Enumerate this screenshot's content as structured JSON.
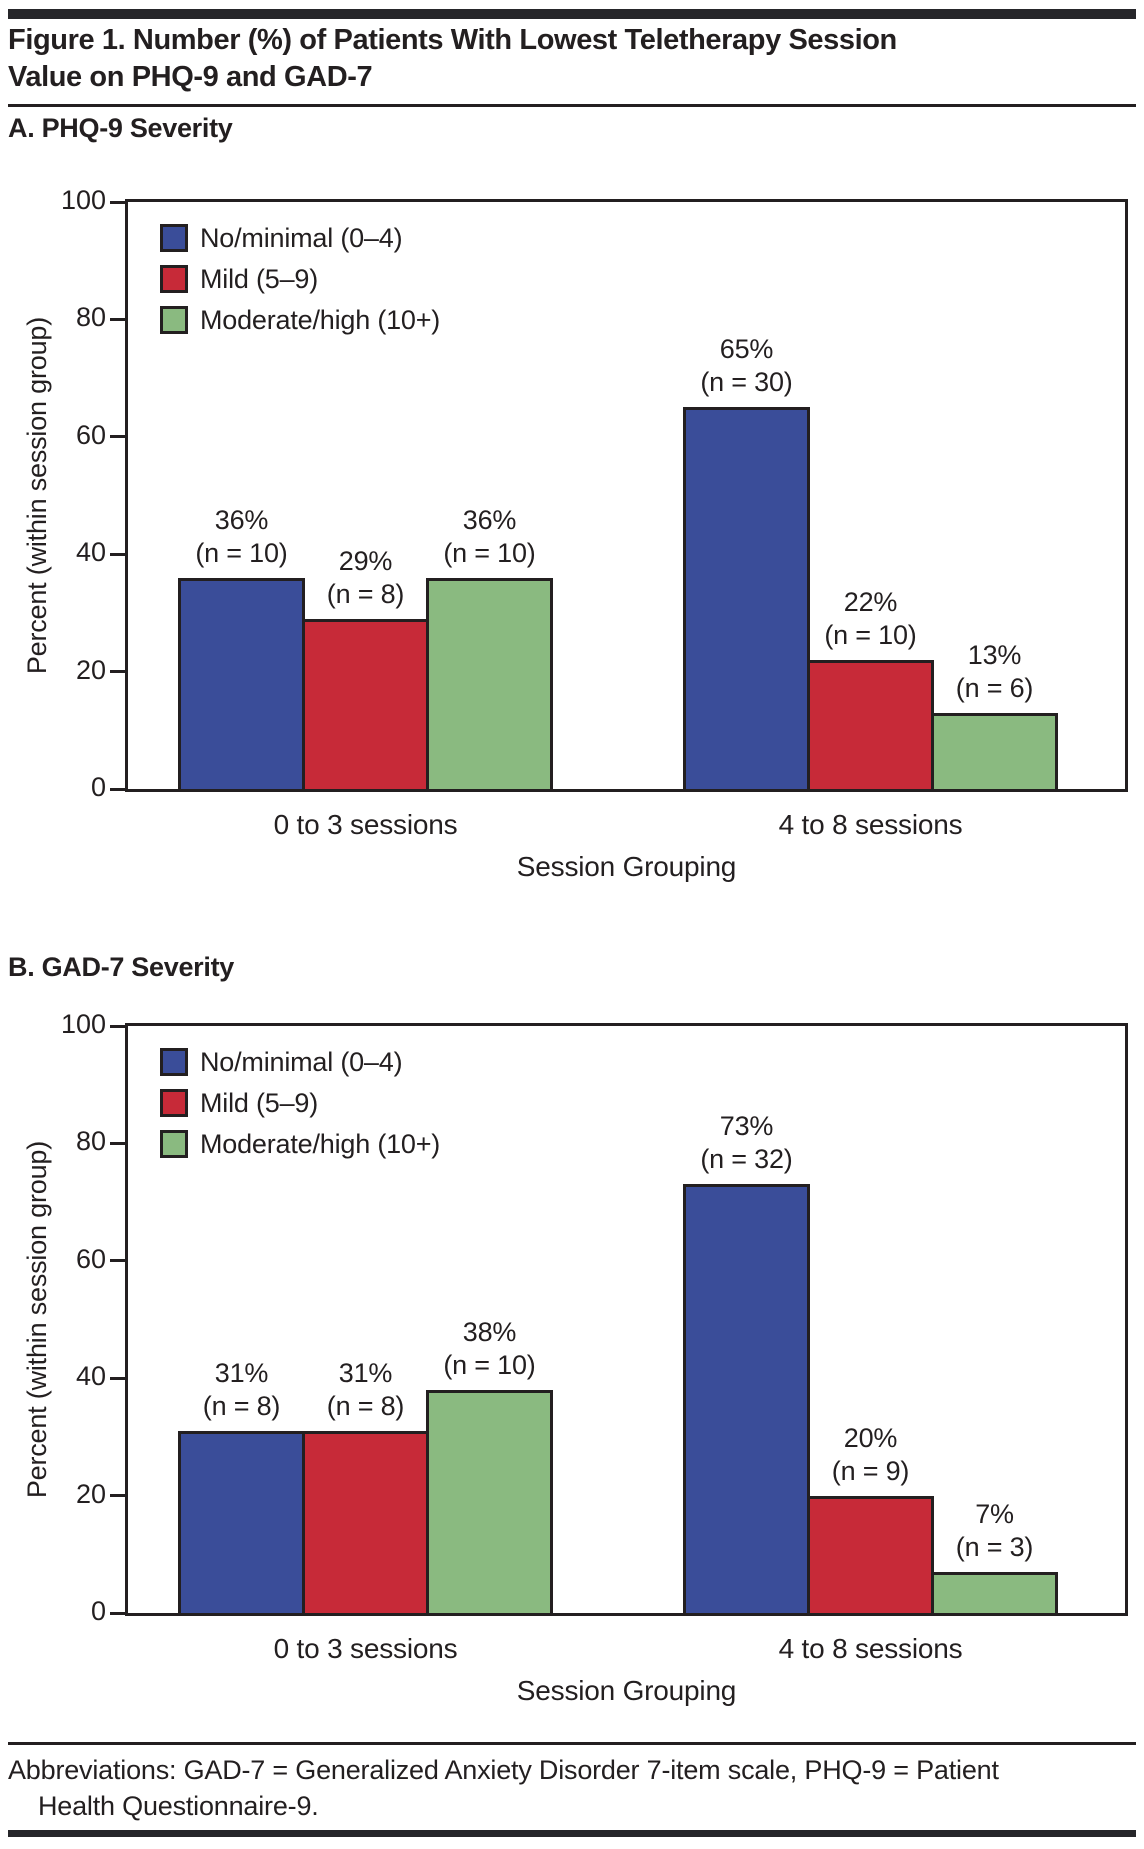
{
  "page": {
    "title_line1": "Figure 1. Number (%) of Patients With Lowest Teletherapy Session",
    "title_line2": "Value on PHQ-9 and GAD-7",
    "footer_line1": "Abbreviations: GAD-7 = Generalized Anxiety Disorder 7-item scale, PHQ-9 = Patient",
    "footer_line2": "Health Questionnaire-9."
  },
  "colors": {
    "ink": "#231f20",
    "rule_bar": "#26262a",
    "bar_blue": "#3a4d99",
    "bar_red": "#c72a38",
    "bar_green": "#8aba80"
  },
  "legend": {
    "items": [
      {
        "label": "No/minimal (0–4)",
        "color": "bar_blue"
      },
      {
        "label": "Mild (5–9)",
        "color": "bar_red"
      },
      {
        "label": "Moderate/high (10+)",
        "color": "bar_green"
      }
    ]
  },
  "chart_data": [
    {
      "panel": "A",
      "title": "A. PHQ-9 Severity",
      "type": "bar",
      "xlabel": "Session Grouping",
      "ylabel": "Percent (within session group)",
      "ylim": [
        0,
        100
      ],
      "yticks": [
        0,
        20,
        40,
        60,
        80,
        100
      ],
      "grid": false,
      "legend_position": "top-left",
      "categories": [
        "0 to 3 sessions",
        "4 to 8 sessions"
      ],
      "series": [
        {
          "name": "No/minimal (0–4)",
          "color": "bar_blue",
          "values": [
            36,
            65
          ],
          "counts": [
            10,
            30
          ],
          "labels": [
            [
              "36%",
              "(n = 10)"
            ],
            [
              "65%",
              "(n = 30)"
            ]
          ]
        },
        {
          "name": "Mild (5–9)",
          "color": "bar_red",
          "values": [
            29,
            22
          ],
          "counts": [
            8,
            10
          ],
          "labels": [
            [
              "29%",
              "(n = 8)"
            ],
            [
              "22%",
              "(n = 10)"
            ]
          ]
        },
        {
          "name": "Moderate/high (10+)",
          "color": "bar_green",
          "values": [
            36,
            13
          ],
          "counts": [
            10,
            6
          ],
          "labels": [
            [
              "36%",
              "(n = 10)"
            ],
            [
              "13%",
              "(n = 6)"
            ]
          ]
        }
      ]
    },
    {
      "panel": "B",
      "title": "B. GAD-7 Severity",
      "type": "bar",
      "xlabel": "Session Grouping",
      "ylabel": "Percent (within session group)",
      "ylim": [
        0,
        100
      ],
      "yticks": [
        0,
        20,
        40,
        60,
        80,
        100
      ],
      "grid": false,
      "legend_position": "top-left",
      "categories": [
        "0 to 3 sessions",
        "4 to 8 sessions"
      ],
      "series": [
        {
          "name": "No/minimal (0–4)",
          "color": "bar_blue",
          "values": [
            31,
            73
          ],
          "counts": [
            8,
            32
          ],
          "labels": [
            [
              "31%",
              "(n = 8)"
            ],
            [
              "73%",
              "(n = 32)"
            ]
          ]
        },
        {
          "name": "Mild (5–9)",
          "color": "bar_red",
          "values": [
            31,
            20
          ],
          "counts": [
            8,
            9
          ],
          "labels": [
            [
              "31%",
              "(n = 8)"
            ],
            [
              "20%",
              "(n = 9)"
            ]
          ]
        },
        {
          "name": "Moderate/high (10+)",
          "color": "bar_green",
          "values": [
            38,
            7
          ],
          "counts": [
            10,
            3
          ],
          "labels": [
            [
              "38%",
              "(n = 10)"
            ],
            [
              "7%",
              "(n = 3)"
            ]
          ]
        }
      ]
    }
  ]
}
